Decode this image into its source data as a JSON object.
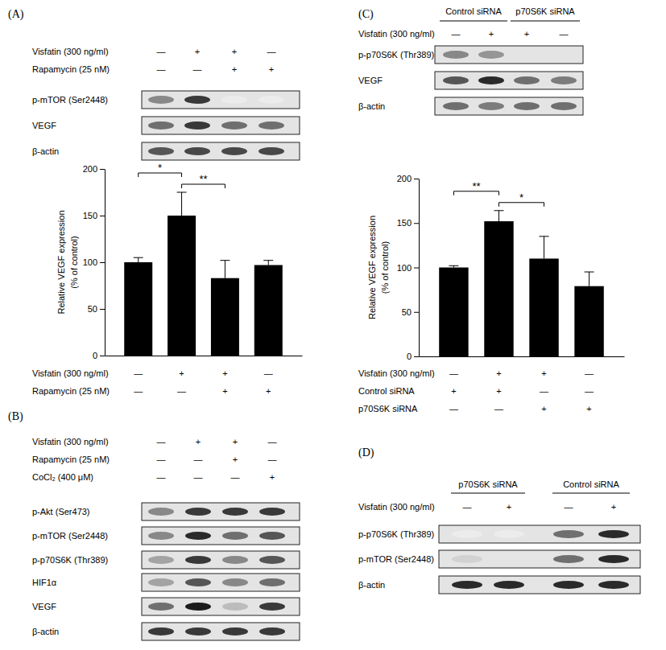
{
  "chart_data": [
    {
      "type": "bar",
      "categories": [
        null,
        null,
        null,
        null
      ],
      "values": [
        100,
        150,
        83,
        97
      ],
      "errors": [
        5,
        25,
        19,
        5
      ],
      "color": "#000000",
      "ylim": [
        0,
        200
      ],
      "yticks": [
        0,
        50,
        100,
        150,
        200
      ],
      "tick_labels": "y",
      "y_label": [
        "Relative VEGF expression",
        "(% of control)"
      ],
      "treatments": [
        {
          "label": "Visfatin (300 ng/ml)",
          "signs": [
            "—",
            "+",
            "+",
            "—"
          ]
        },
        {
          "label": "Rapamycin (25 nM)",
          "signs": [
            "—",
            "—",
            "+",
            "+"
          ]
        }
      ],
      "annotations": [
        {
          "text": "*",
          "from": 0,
          "to": 1
        },
        {
          "text": "**",
          "from": 1,
          "to": 2
        }
      ]
    },
    {
      "type": "bar",
      "categories": [
        null,
        null,
        null,
        null
      ],
      "values": [
        100,
        152,
        110,
        79
      ],
      "errors": [
        2,
        12,
        25,
        16
      ],
      "color": "#000000",
      "ylim": [
        0,
        200
      ],
      "yticks": [
        0,
        50,
        100,
        150,
        200
      ],
      "tick_labels": "y",
      "y_label": [
        "Relative VEGF expression",
        "(% of control)"
      ],
      "treatments": [
        {
          "label": "Visfatin (300 ng/ml)",
          "signs": [
            "—",
            "+",
            "+",
            "—"
          ]
        },
        {
          "label": "Control siRNA",
          "signs": [
            "+",
            "+",
            "—",
            "—"
          ]
        },
        {
          "label": "p70S6K siRNA",
          "signs": [
            "—",
            "—",
            "+",
            "+"
          ]
        }
      ],
      "annotations": [
        {
          "text": "**",
          "from": 0,
          "to": 1
        },
        {
          "text": "*",
          "from": 1,
          "to": 2
        }
      ]
    }
  ],
  "panels": [
    {
      "label": "(A)",
      "treatments": [
        {
          "label": "Visfatin (300 ng/ml)",
          "signs": [
            "—",
            "+",
            "+",
            "—"
          ]
        },
        {
          "label": "Rapamycin (25 nM)",
          "signs": [
            "—",
            "—",
            "+",
            "+"
          ]
        }
      ],
      "blot_rows": [
        {
          "label": "p-mTOR (Ser2448)",
          "bands": [
            0.5,
            0.8,
            0.05,
            0.05
          ]
        },
        {
          "label": "VEGF",
          "bands": [
            0.6,
            0.8,
            0.6,
            0.6
          ]
        },
        {
          "label": "β-actin",
          "bands": [
            0.7,
            0.75,
            0.75,
            0.75
          ]
        }
      ]
    },
    {
      "label": "(B)",
      "treatments": [
        {
          "label": "Visfatin (300 ng/ml)",
          "signs": [
            "—",
            "+",
            "+",
            "—"
          ]
        },
        {
          "label": "Rapamycin (25 nM)",
          "signs": [
            "—",
            "—",
            "+",
            "—"
          ]
        },
        {
          "label": "CoCl₂ (400 μM)",
          "signs": [
            "—",
            "—",
            "—",
            "+"
          ]
        }
      ],
      "blot_rows": [
        {
          "label": "p-Akt (Ser473)",
          "bands": [
            0.5,
            0.8,
            0.8,
            0.8
          ]
        },
        {
          "label": "p-mTOR (Ser2448)",
          "bands": [
            0.5,
            0.85,
            0.6,
            0.7
          ]
        },
        {
          "label": "p-p70S6K (Thr389)",
          "bands": [
            0.4,
            0.8,
            0.5,
            0.7
          ]
        },
        {
          "label": "HIF1α",
          "bands": [
            0.4,
            0.7,
            0.5,
            0.6
          ]
        },
        {
          "label": "VEGF",
          "bands": [
            0.6,
            0.9,
            0.3,
            0.8
          ]
        },
        {
          "label": "β-actin",
          "bands": [
            0.8,
            0.8,
            0.8,
            0.8
          ]
        }
      ]
    },
    {
      "label": "(C)",
      "groups": [
        {
          "label": "Control siRNA",
          "from": 0,
          "to": 1
        },
        {
          "label": "p70S6K siRNA",
          "from": 2,
          "to": 3
        }
      ],
      "treatments": [
        {
          "label": "Visfatin (300 ng/ml)",
          "signs": [
            "—",
            "+",
            "+",
            "—"
          ]
        }
      ],
      "blot_rows": [
        {
          "label": "p-p70S6K (Thr389)",
          "bands": [
            0.5,
            0.45,
            0.1,
            0.1
          ]
        },
        {
          "label": "VEGF",
          "bands": [
            0.7,
            0.85,
            0.6,
            0.55
          ]
        },
        {
          "label": "β-actin",
          "bands": [
            0.6,
            0.55,
            0.6,
            0.6
          ]
        }
      ]
    },
    {
      "label": "(D)",
      "groups": [
        {
          "label": "p70S6K siRNA",
          "from": 0,
          "to": 1
        },
        {
          "label": "Control siRNA",
          "from": 2,
          "to": 3
        }
      ],
      "treatments": [
        {
          "label": "Visfatin (300 ng/ml)",
          "signs": [
            "—",
            "+",
            "—",
            "+"
          ]
        }
      ],
      "blot_rows": [
        {
          "label": "p-p70S6K (Thr389)",
          "bands": [
            0.05,
            0.05,
            0.6,
            0.85
          ]
        },
        {
          "label": "p-mTOR (Ser2448)",
          "bands": [
            0.2,
            0.1,
            0.6,
            0.85
          ]
        },
        {
          "label": "β-actin",
          "bands": [
            0.85,
            0.85,
            0.85,
            0.85
          ]
        }
      ]
    }
  ]
}
